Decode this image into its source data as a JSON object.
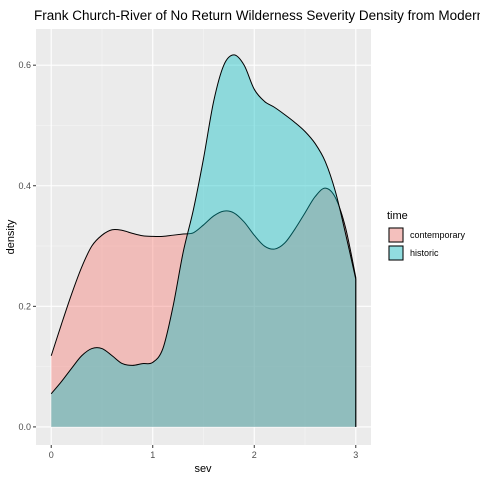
{
  "chart_data": {
    "type": "area",
    "title": "Frank Church-River of No Return Wilderness Severity Density from Modern B",
    "xlabel": "sev",
    "ylabel": "density",
    "xlim": [
      -0.15,
      3.15
    ],
    "ylim": [
      -0.03,
      0.66
    ],
    "x_ticks": [
      0,
      1,
      2,
      3
    ],
    "x_tick_labels": [
      "0",
      "1",
      "2",
      "3"
    ],
    "y_ticks": [
      0.0,
      0.2,
      0.4,
      0.6
    ],
    "y_tick_labels": [
      "0.0",
      "0.2",
      "0.4",
      "0.6"
    ],
    "grid": true,
    "legend": {
      "title": "time",
      "position": "right"
    },
    "series": [
      {
        "name": "contemporary",
        "color": "#F8766D",
        "x": [
          0,
          0.1,
          0.2,
          0.3,
          0.4,
          0.5,
          0.6,
          0.7,
          0.8,
          0.9,
          1.0,
          1.1,
          1.2,
          1.3,
          1.4,
          1.5,
          1.6,
          1.7,
          1.8,
          1.9,
          2.0,
          2.1,
          2.2,
          2.3,
          2.4,
          2.5,
          2.6,
          2.7,
          2.8,
          2.9,
          3.0
        ],
        "values": [
          0.118,
          0.17,
          0.22,
          0.265,
          0.3,
          0.318,
          0.327,
          0.326,
          0.321,
          0.317,
          0.316,
          0.316,
          0.318,
          0.32,
          0.322,
          0.335,
          0.35,
          0.358,
          0.355,
          0.34,
          0.318,
          0.3,
          0.295,
          0.305,
          0.328,
          0.355,
          0.382,
          0.396,
          0.38,
          0.33,
          0.248
        ]
      },
      {
        "name": "historic",
        "color": "#00BFC4",
        "x": [
          0,
          0.1,
          0.2,
          0.3,
          0.4,
          0.5,
          0.6,
          0.7,
          0.8,
          0.9,
          1.0,
          1.1,
          1.2,
          1.3,
          1.4,
          1.5,
          1.6,
          1.7,
          1.8,
          1.9,
          2.0,
          2.1,
          2.2,
          2.3,
          2.4,
          2.5,
          2.6,
          2.7,
          2.8,
          2.9,
          3.0
        ],
        "values": [
          0.055,
          0.075,
          0.097,
          0.118,
          0.13,
          0.13,
          0.118,
          0.105,
          0.102,
          0.105,
          0.107,
          0.13,
          0.2,
          0.29,
          0.36,
          0.445,
          0.54,
          0.6,
          0.617,
          0.6,
          0.56,
          0.54,
          0.53,
          0.518,
          0.505,
          0.49,
          0.47,
          0.44,
          0.39,
          0.32,
          0.245
        ]
      }
    ]
  }
}
